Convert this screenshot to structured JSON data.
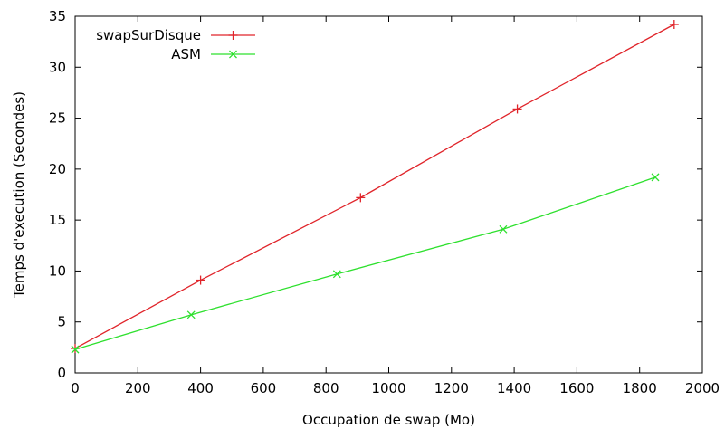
{
  "chart_data": {
    "type": "line",
    "xlabel": "Occupation de swap (Mo)",
    "ylabel": "Temps d'execution (Secondes)",
    "xlim": [
      0,
      2000
    ],
    "ylim": [
      0,
      35
    ],
    "x_ticks": [
      0,
      200,
      400,
      600,
      800,
      1000,
      1200,
      1400,
      1600,
      1800,
      2000
    ],
    "y_ticks": [
      0,
      5,
      10,
      15,
      20,
      25,
      30,
      35
    ],
    "grid": false,
    "legend_position": "top-left",
    "series": [
      {
        "name": "swapSurDisque",
        "color": "#e0242a",
        "marker": "plus",
        "x": [
          0,
          400,
          910,
          1410,
          1910
        ],
        "y": [
          2.4,
          9.1,
          17.2,
          25.9,
          34.2
        ]
      },
      {
        "name": "ASM",
        "color": "#2ee02e",
        "marker": "cross",
        "x": [
          0,
          370,
          835,
          1365,
          1850
        ],
        "y": [
          2.3,
          5.7,
          9.7,
          14.1,
          19.2
        ]
      }
    ]
  }
}
